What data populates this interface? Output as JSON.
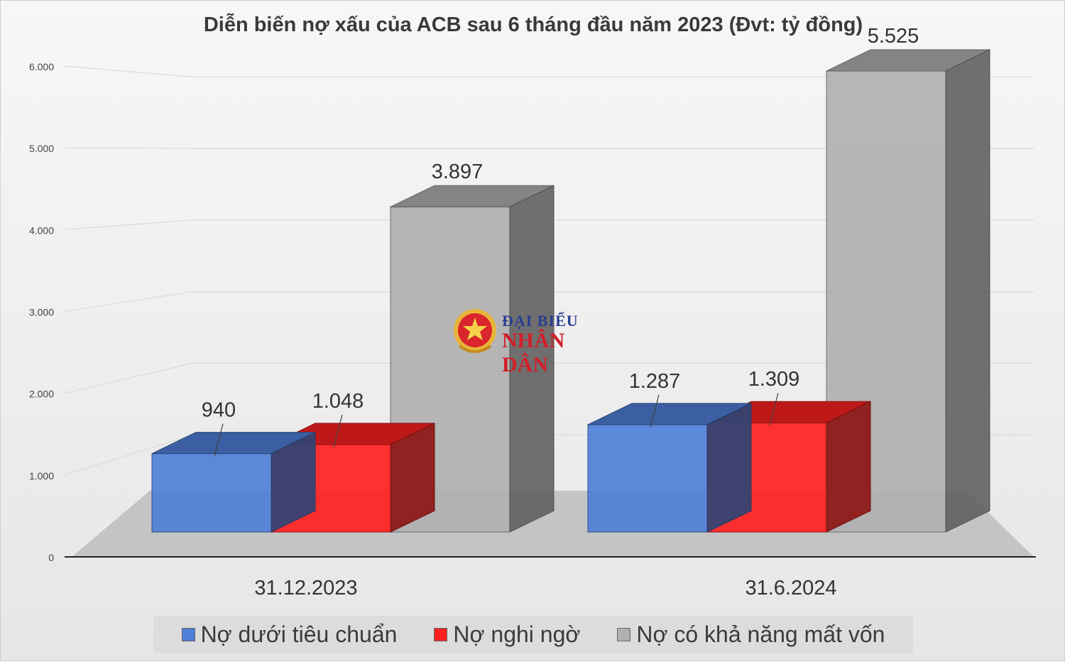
{
  "chart_data": {
    "type": "bar",
    "title": "Diễn biến nợ xấu của ACB sau 6 tháng đầu năm 2023 (Đvt: tỷ đồng)",
    "categories": [
      "31.12.2023",
      "31.6.2024"
    ],
    "series": [
      {
        "name": "Nợ dưới tiêu chuẩn",
        "values": [
          940,
          1287
        ],
        "labels": [
          "940",
          "1.287"
        ],
        "color": "#4f7fd8"
      },
      {
        "name": "Nợ nghi ngờ",
        "values": [
          1048,
          1309
        ],
        "labels": [
          "1.048",
          "1.309"
        ],
        "color": "#ff2020"
      },
      {
        "name": "Nợ có khả năng mất vốn",
        "values": [
          3897,
          5525
        ],
        "labels": [
          "3.897",
          "5.525"
        ],
        "color": "#b0b0b0"
      }
    ],
    "yticks": [
      "0",
      "1.000",
      "2.000",
      "3.000",
      "4.000",
      "5.000",
      "6.000"
    ],
    "ylim": [
      0,
      6000
    ],
    "legend_position": "bottom",
    "grid": true,
    "style": "3d-clustered-column"
  },
  "watermark": {
    "line1": "ĐẠI BIỂU",
    "line2": "NHÂN DÂN"
  }
}
